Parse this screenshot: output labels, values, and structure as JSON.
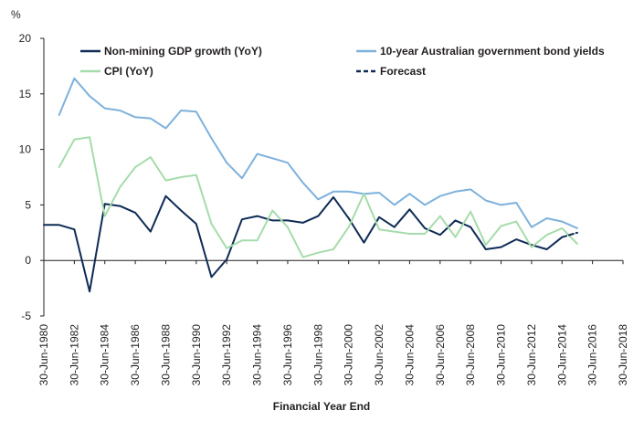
{
  "chart_data": {
    "type": "line",
    "title": "",
    "ylabel": "%",
    "xlabel": "Financial Year End",
    "ylim": [
      -5,
      20
    ],
    "yticks": [
      -5,
      0,
      5,
      10,
      15,
      20
    ],
    "xlim": [
      1980,
      2018
    ],
    "xticks": [
      "30-Jun-1980",
      "30-Jun-1982",
      "30-Jun-1984",
      "30-Jun-1986",
      "30-Jun-1988",
      "30-Jun-1990",
      "30-Jun-1992",
      "30-Jun-1994",
      "30-Jun-1996",
      "30-Jun-1998",
      "30-Jun-2000",
      "30-Jun-2002",
      "30-Jun-2004",
      "30-Jun-2006",
      "30-Jun-2008",
      "30-Jun-2010",
      "30-Jun-2012",
      "30-Jun-2014",
      "30-Jun-2016",
      "30-Jun-2018"
    ],
    "grid": false,
    "legend_position": "top",
    "series": [
      {
        "name": "Non-mining GDP growth (YoY)",
        "color": "#0d2b55",
        "style": "solid",
        "x": [
          1980,
          1981,
          1982,
          1983,
          1984,
          1985,
          1986,
          1987,
          1988,
          1989,
          1990,
          1991,
          1992,
          1993,
          1994,
          1995,
          1996,
          1997,
          1998,
          1999,
          2000,
          2001,
          2002,
          2003,
          2004,
          2005,
          2006,
          2007,
          2008,
          2009,
          2010,
          2011,
          2012,
          2013,
          2014
        ],
        "values": [
          3.2,
          3.2,
          2.8,
          -2.8,
          5.1,
          4.9,
          4.3,
          2.6,
          5.8,
          4.5,
          3.3,
          -1.5,
          0.1,
          3.7,
          4.0,
          3.6,
          3.6,
          3.4,
          4.0,
          5.7,
          3.8,
          1.6,
          3.9,
          3.0,
          4.6,
          2.9,
          2.3,
          3.6,
          3.0,
          1.0,
          1.2,
          1.9,
          1.4,
          1.0,
          2.1
        ]
      },
      {
        "name": "10-year Australian government bond yields",
        "color": "#7eb1dc",
        "style": "solid",
        "x": [
          1981,
          1982,
          1983,
          1984,
          1985,
          1986,
          1987,
          1988,
          1989,
          1990,
          1991,
          1992,
          1993,
          1994,
          1995,
          1996,
          1997,
          1998,
          1999,
          2000,
          2001,
          2002,
          2003,
          2004,
          2005,
          2006,
          2007,
          2008,
          2009,
          2010,
          2011,
          2012,
          2013,
          2014,
          2015
        ],
        "values": [
          13.1,
          16.4,
          14.8,
          13.7,
          13.5,
          12.9,
          12.8,
          11.9,
          13.5,
          13.4,
          11.0,
          8.8,
          7.4,
          9.6,
          9.2,
          8.8,
          7.0,
          5.5,
          6.2,
          6.2,
          6.0,
          6.1,
          5.0,
          6.0,
          5.0,
          5.8,
          6.2,
          6.4,
          5.4,
          5.0,
          5.2,
          3.0,
          3.8,
          3.5,
          2.9
        ]
      },
      {
        "name": "CPI (YoY)",
        "color": "#a6dcab",
        "style": "solid",
        "x": [
          1981,
          1982,
          1983,
          1984,
          1985,
          1986,
          1987,
          1988,
          1989,
          1990,
          1991,
          1992,
          1993,
          1994,
          1995,
          1996,
          1997,
          1998,
          1999,
          2000,
          2001,
          2002,
          2003,
          2004,
          2005,
          2006,
          2007,
          2008,
          2009,
          2010,
          2011,
          2012,
          2013,
          2014,
          2015
        ],
        "values": [
          8.4,
          10.9,
          11.1,
          4.0,
          6.6,
          8.4,
          9.3,
          7.2,
          7.5,
          7.7,
          3.3,
          1.1,
          1.8,
          1.8,
          4.5,
          3.0,
          0.3,
          0.7,
          1.0,
          3.0,
          6.0,
          2.8,
          2.6,
          2.4,
          2.4,
          4.0,
          2.1,
          4.4,
          1.4,
          3.1,
          3.5,
          1.2,
          2.3,
          2.9,
          1.5
        ]
      },
      {
        "name": "Forecast",
        "color": "#0d2b55",
        "style": "dashed",
        "x": [
          2014,
          2015
        ],
        "values": [
          2.1,
          2.5
        ]
      }
    ]
  }
}
